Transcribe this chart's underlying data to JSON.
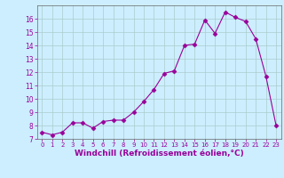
{
  "x": [
    0,
    1,
    2,
    3,
    4,
    5,
    6,
    7,
    8,
    9,
    10,
    11,
    12,
    13,
    14,
    15,
    16,
    17,
    18,
    19,
    20,
    21,
    22,
    23
  ],
  "y": [
    7.5,
    7.3,
    7.5,
    8.2,
    8.2,
    7.8,
    8.3,
    8.4,
    8.4,
    9.0,
    9.8,
    10.7,
    11.9,
    12.1,
    14.0,
    14.1,
    15.9,
    14.9,
    16.5,
    16.1,
    15.8,
    14.5,
    11.7,
    8.0
  ],
  "line_color": "#990099",
  "marker": "D",
  "marker_size": 2.5,
  "bg_color": "#cceeff",
  "grid_color": "#aacccc",
  "tick_color": "#990099",
  "xlabel": "Windchill (Refroidissement éolien,°C)",
  "xlabel_fontsize": 6.5,
  "xlim": [
    -0.5,
    23.5
  ],
  "ylim": [
    7,
    17
  ],
  "yticks": [
    7,
    8,
    9,
    10,
    11,
    12,
    13,
    14,
    15,
    16
  ],
  "xticks": [
    0,
    1,
    2,
    3,
    4,
    5,
    6,
    7,
    8,
    9,
    10,
    11,
    12,
    13,
    14,
    15,
    16,
    17,
    18,
    19,
    20,
    21,
    22,
    23
  ]
}
